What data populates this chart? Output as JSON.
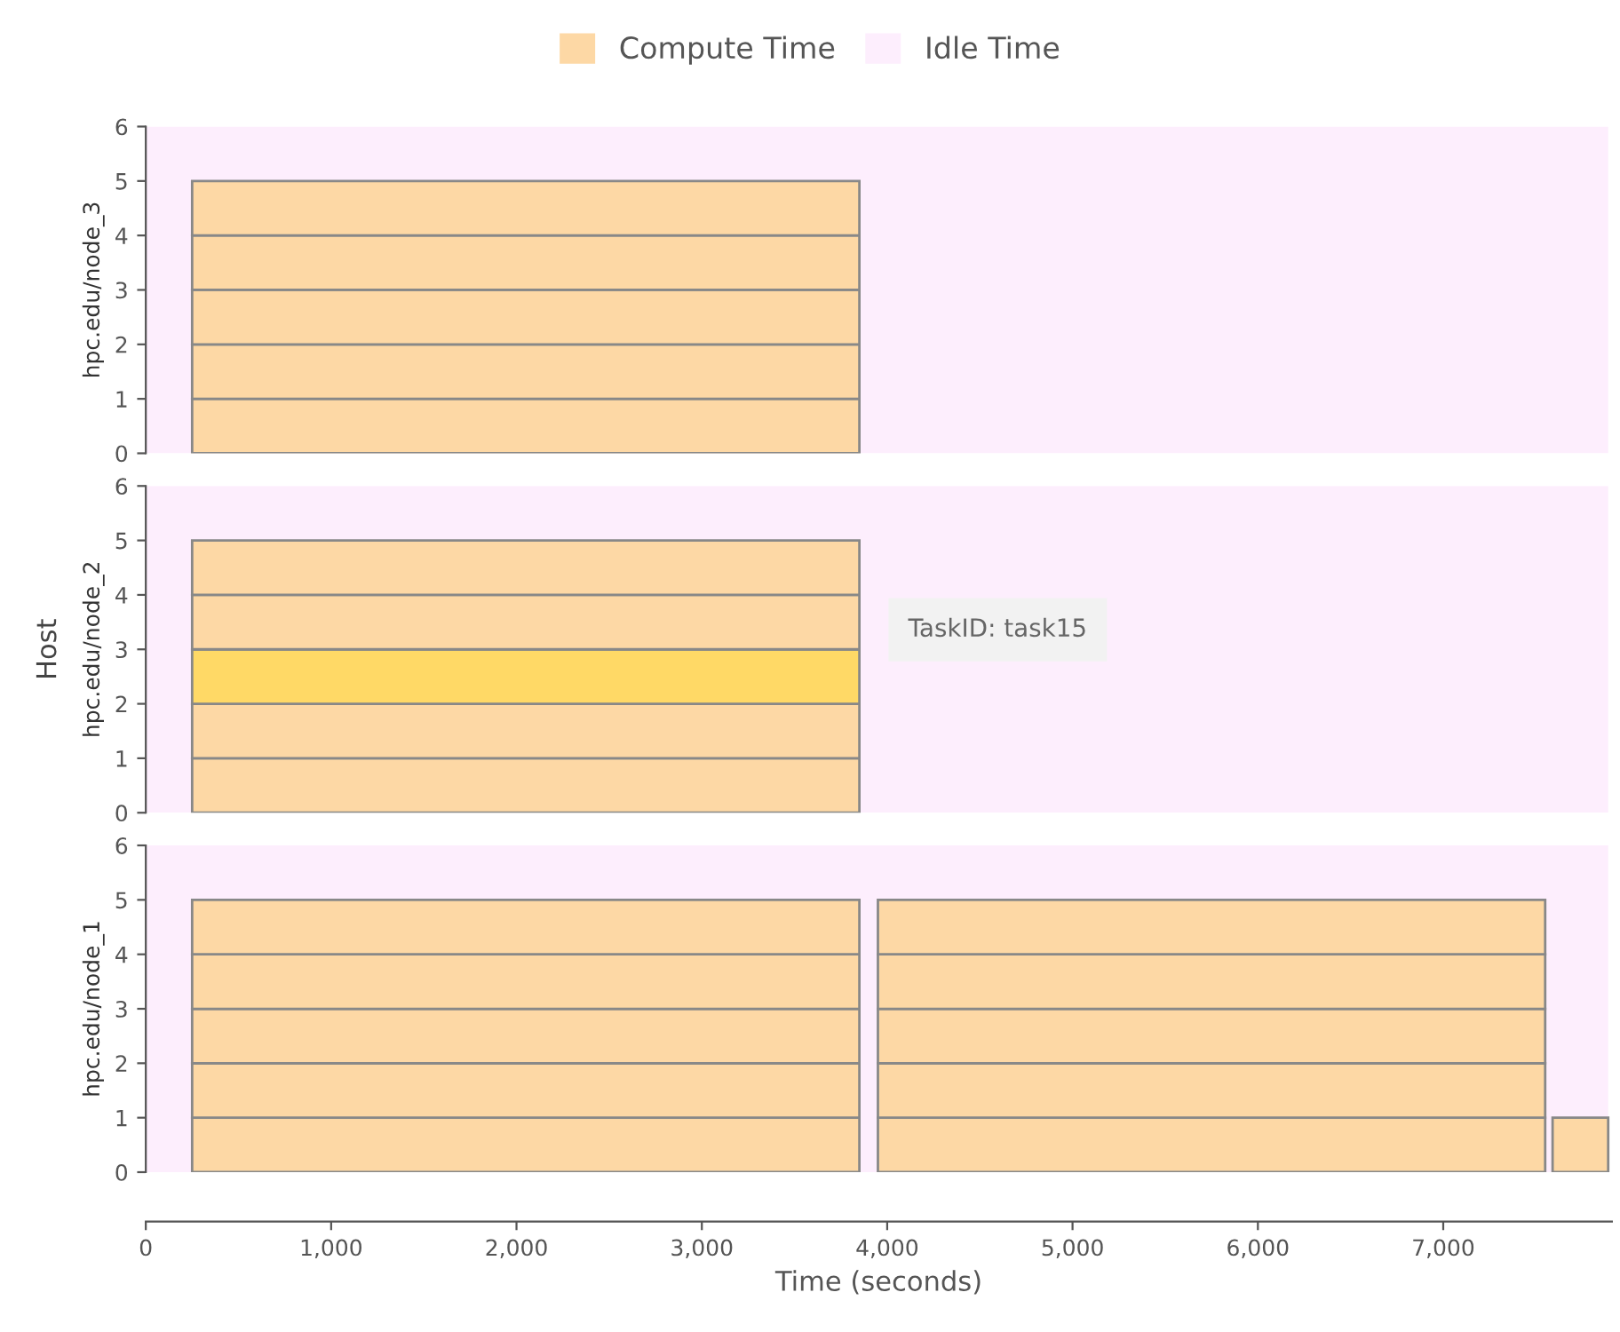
{
  "chart_data": [
    {
      "type": "bar",
      "orientation": "horizontal",
      "ylabel": "hpc.edu/node_3",
      "xlim": [
        0,
        7910
      ],
      "ylim": [
        0,
        6
      ],
      "yticks": [
        0,
        1,
        2,
        3,
        4,
        5,
        6
      ],
      "tick_labels": "y",
      "legend": "top",
      "grid": false,
      "series": [
        {
          "name": "Compute Time",
          "color": "#fdd8a5",
          "x": [
            0.5,
            1.5,
            2.5,
            3.5,
            4.5
          ],
          "base": [
            250,
            250,
            250,
            250,
            250
          ],
          "values": [
            3600,
            3600,
            3600,
            3600,
            3600
          ]
        }
      ],
      "bands": [
        {
          "axis": "x",
          "from": 0,
          "to": 7890,
          "label": "Idle Time",
          "color": "#fdeefd"
        }
      ]
    },
    {
      "type": "bar",
      "orientation": "horizontal",
      "ylabel": "hpc.edu/node_2",
      "xlim": [
        0,
        7910
      ],
      "ylim": [
        0,
        6
      ],
      "yticks": [
        0,
        1,
        2,
        3,
        4,
        5,
        6
      ],
      "tick_labels": "y",
      "grid": false,
      "series": [
        {
          "colors": [
            "#fdd8a5",
            "#fdd8a5",
            "#ffd966",
            "#fdd8a5",
            "#fdd8a5"
          ],
          "x": [
            0.5,
            1.5,
            2.5,
            3.5,
            4.5
          ],
          "base": [
            250,
            250,
            250,
            250,
            250
          ],
          "values": [
            3600,
            3600,
            3600,
            3600,
            3600
          ]
        }
      ],
      "bands": [
        {
          "axis": "x",
          "from": 0,
          "to": 7890,
          "color": "#fdeefd"
        }
      ],
      "annotations": [
        "Host",
        "TaskID: task15"
      ]
    },
    {
      "type": "bar",
      "orientation": "horizontal",
      "ylabel": "hpc.edu/node_1",
      "xlabel": "Time (seconds)",
      "xlim": [
        0,
        7910
      ],
      "xticks": [
        0,
        {
          "value": 1000,
          "label": "1,000"
        },
        {
          "value": 2000,
          "label": "2,000"
        },
        {
          "value": 3000,
          "label": "3,000"
        },
        {
          "value": 4000,
          "label": "4,000"
        },
        {
          "value": 5000,
          "label": "5,000"
        },
        {
          "value": 6000,
          "label": "6,000"
        },
        {
          "value": 7000,
          "label": "7,000"
        }
      ],
      "ylim": [
        0,
        6
      ],
      "yticks": [
        0,
        1,
        2,
        3,
        4,
        5,
        6
      ],
      "grid": false,
      "series": [
        {
          "color": "#fdd8a5",
          "x": [
            0.5,
            1.5,
            2.5,
            3.5,
            4.5
          ],
          "base": [
            250,
            250,
            250,
            250,
            250
          ],
          "values": [
            3600,
            3600,
            3600,
            3600,
            3600
          ]
        },
        {
          "color": "#fdd8a5",
          "x": [
            0.5,
            1.5,
            2.5,
            3.5,
            4.5
          ],
          "base": [
            3950,
            3950,
            3950,
            3950,
            3950
          ],
          "values": [
            3600,
            3600,
            3600,
            3600,
            3600
          ]
        },
        {
          "color": "#fdd8a5",
          "x": [
            0.5
          ],
          "base": [
            7590
          ],
          "values": [
            300
          ]
        }
      ],
      "bands": [
        {
          "axis": "x",
          "from": 0,
          "to": 7890,
          "color": "#fdeefd"
        }
      ]
    }
  ]
}
